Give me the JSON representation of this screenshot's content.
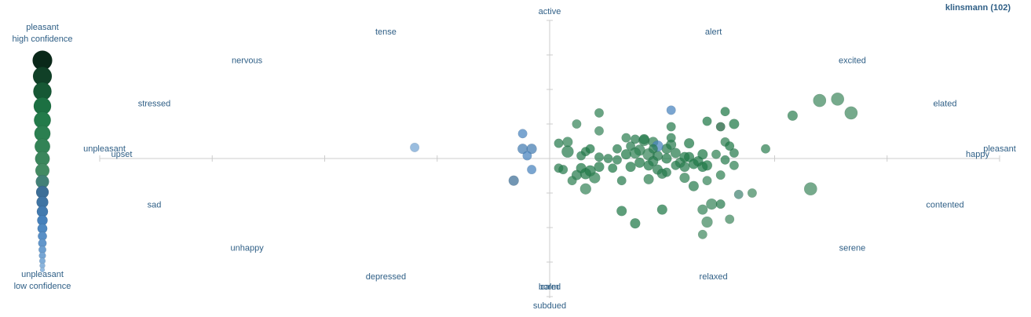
{
  "chart_data": {
    "type": "scatter",
    "title": "klinsmann (102)",
    "xlabel": "",
    "ylabel": "",
    "xlim": [
      -1,
      1
    ],
    "ylim": [
      -1,
      1
    ],
    "grid": false,
    "axis_labels": {
      "x_neg": "unpleasant",
      "x_pos": "pleasant",
      "y_pos": "active",
      "y_neg": "subdued"
    },
    "emotion_labels": [
      {
        "text": "tense",
        "angle": 112.5
      },
      {
        "text": "nervous",
        "angle": 135
      },
      {
        "text": "stressed",
        "angle": 157.5
      },
      {
        "text": "upset",
        "angle": 180
      },
      {
        "text": "alert",
        "angle": 67.5
      },
      {
        "text": "excited",
        "angle": 45
      },
      {
        "text": "elated",
        "angle": 22.5
      },
      {
        "text": "happy",
        "angle": 0
      },
      {
        "text": "sad",
        "angle": 202.5
      },
      {
        "text": "unhappy",
        "angle": 225
      },
      {
        "text": "depressed",
        "angle": 247.5
      },
      {
        "text": "bored",
        "angle": 270
      },
      {
        "text": "contented",
        "angle": -22.5
      },
      {
        "text": "serene",
        "angle": -45
      },
      {
        "text": "relaxed",
        "angle": -67.5
      },
      {
        "text": "calm",
        "angle": -90
      }
    ],
    "legend": {
      "top_line1": "pleasant",
      "top_line2": "high confidence",
      "bottom_line1": "unpleasant",
      "bottom_line2": "low confidence",
      "placement": "left"
    },
    "points": [
      {
        "x": -0.3,
        "y": 0.08,
        "c": 0.2,
        "s": 0.3
      },
      {
        "x": -0.06,
        "y": 0.18,
        "c": 0.4,
        "s": 0.3
      },
      {
        "x": -0.06,
        "y": 0.07,
        "c": 0.45,
        "s": 0.4
      },
      {
        "x": -0.04,
        "y": 0.07,
        "c": 0.45,
        "s": 0.4
      },
      {
        "x": -0.05,
        "y": 0.02,
        "c": 0.4,
        "s": 0.3
      },
      {
        "x": -0.04,
        "y": -0.08,
        "c": 0.4,
        "s": 0.3
      },
      {
        "x": -0.08,
        "y": -0.16,
        "c": 0.55,
        "s": 0.4
      },
      {
        "x": 0.11,
        "y": 0.33,
        "c": 0.75,
        "s": 0.3
      },
      {
        "x": 0.11,
        "y": 0.2,
        "c": 0.7,
        "s": 0.3
      },
      {
        "x": 0.04,
        "y": 0.12,
        "c": 0.75,
        "s": 0.4
      },
      {
        "x": 0.02,
        "y": 0.11,
        "c": 0.8,
        "s": 0.3
      },
      {
        "x": 0.04,
        "y": 0.05,
        "c": 0.8,
        "s": 0.6
      },
      {
        "x": 0.08,
        "y": 0.05,
        "c": 0.85,
        "s": 0.3
      },
      {
        "x": 0.09,
        "y": 0.07,
        "c": 0.85,
        "s": 0.3
      },
      {
        "x": 0.07,
        "y": 0.02,
        "c": 0.8,
        "s": 0.3
      },
      {
        "x": 0.02,
        "y": -0.07,
        "c": 0.8,
        "s": 0.3
      },
      {
        "x": 0.07,
        "y": -0.07,
        "c": 0.85,
        "s": 0.4
      },
      {
        "x": 0.09,
        "y": -0.09,
        "c": 0.85,
        "s": 0.5
      },
      {
        "x": 0.08,
        "y": -0.11,
        "c": 0.85,
        "s": 0.5
      },
      {
        "x": 0.06,
        "y": -0.12,
        "c": 0.8,
        "s": 0.4
      },
      {
        "x": 0.11,
        "y": -0.06,
        "c": 0.85,
        "s": 0.4
      },
      {
        "x": 0.1,
        "y": -0.14,
        "c": 0.75,
        "s": 0.5
      },
      {
        "x": 0.11,
        "y": 0.01,
        "c": 0.8,
        "s": 0.3
      },
      {
        "x": 0.15,
        "y": 0.07,
        "c": 0.8,
        "s": 0.3
      },
      {
        "x": 0.15,
        "y": -0.01,
        "c": 0.8,
        "s": 0.3
      },
      {
        "x": 0.17,
        "y": 0.03,
        "c": 0.85,
        "s": 0.4
      },
      {
        "x": 0.18,
        "y": 0.09,
        "c": 0.8,
        "s": 0.3
      },
      {
        "x": 0.19,
        "y": 0.14,
        "c": 0.8,
        "s": 0.3
      },
      {
        "x": 0.2,
        "y": 0.06,
        "c": 0.75,
        "s": 0.5
      },
      {
        "x": 0.21,
        "y": 0.13,
        "c": 0.75,
        "s": 0.5
      },
      {
        "x": 0.22,
        "y": 0.03,
        "c": 0.7,
        "s": 0.6
      },
      {
        "x": 0.23,
        "y": 0.12,
        "c": 0.75,
        "s": 0.4
      },
      {
        "x": 0.24,
        "y": 0.02,
        "c": 0.8,
        "s": 0.4
      },
      {
        "x": 0.2,
        "y": -0.03,
        "c": 0.85,
        "s": 0.4
      },
      {
        "x": 0.18,
        "y": -0.06,
        "c": 0.85,
        "s": 0.4
      },
      {
        "x": 0.22,
        "y": -0.05,
        "c": 0.85,
        "s": 0.4
      },
      {
        "x": 0.23,
        "y": -0.02,
        "c": 0.8,
        "s": 0.4
      },
      {
        "x": 0.24,
        "y": -0.08,
        "c": 0.8,
        "s": 0.4
      },
      {
        "x": 0.25,
        "y": -0.11,
        "c": 0.8,
        "s": 0.4
      },
      {
        "x": 0.22,
        "y": -0.15,
        "c": 0.75,
        "s": 0.4
      },
      {
        "x": 0.26,
        "y": 0.07,
        "c": 0.8,
        "s": 0.4
      },
      {
        "x": 0.26,
        "y": 0.0,
        "c": 0.85,
        "s": 0.4
      },
      {
        "x": 0.24,
        "y": 0.09,
        "c": 0.4,
        "s": 0.5
      },
      {
        "x": 0.27,
        "y": 0.1,
        "c": 0.8,
        "s": 0.4
      },
      {
        "x": 0.28,
        "y": 0.04,
        "c": 0.8,
        "s": 0.4
      },
      {
        "x": 0.29,
        "y": -0.03,
        "c": 0.75,
        "s": 0.4
      },
      {
        "x": 0.27,
        "y": 0.23,
        "c": 0.8,
        "s": 0.3
      },
      {
        "x": 0.27,
        "y": 0.15,
        "c": 0.8,
        "s": 0.3
      },
      {
        "x": 0.27,
        "y": 0.35,
        "c": 0.4,
        "s": 0.3
      },
      {
        "x": 0.3,
        "y": -0.06,
        "c": 0.8,
        "s": 0.4
      },
      {
        "x": 0.3,
        "y": 0.01,
        "c": 0.85,
        "s": 0.4
      },
      {
        "x": 0.3,
        "y": -0.14,
        "c": 0.75,
        "s": 0.4
      },
      {
        "x": 0.31,
        "y": 0.11,
        "c": 0.85,
        "s": 0.4
      },
      {
        "x": 0.31,
        "y": 0.01,
        "c": 0.85,
        "s": 0.4
      },
      {
        "x": 0.32,
        "y": -0.04,
        "c": 0.85,
        "s": 0.4
      },
      {
        "x": 0.32,
        "y": -0.2,
        "c": 0.8,
        "s": 0.4
      },
      {
        "x": 0.33,
        "y": -0.02,
        "c": 0.85,
        "s": 0.4
      },
      {
        "x": 0.34,
        "y": 0.03,
        "c": 0.85,
        "s": 0.4
      },
      {
        "x": 0.34,
        "y": -0.06,
        "c": 0.85,
        "s": 0.4
      },
      {
        "x": 0.35,
        "y": 0.27,
        "c": 0.85,
        "s": 0.3
      },
      {
        "x": 0.35,
        "y": -0.05,
        "c": 0.85,
        "s": 0.4
      },
      {
        "x": 0.34,
        "y": -0.37,
        "c": 0.7,
        "s": 0.4
      },
      {
        "x": 0.35,
        "y": -0.46,
        "c": 0.65,
        "s": 0.5
      },
      {
        "x": 0.34,
        "y": -0.55,
        "c": 0.65,
        "s": 0.3
      },
      {
        "x": 0.36,
        "y": -0.33,
        "c": 0.7,
        "s": 0.5
      },
      {
        "x": 0.35,
        "y": -0.16,
        "c": 0.7,
        "s": 0.3
      },
      {
        "x": 0.37,
        "y": 0.03,
        "c": 0.75,
        "s": 0.3
      },
      {
        "x": 0.38,
        "y": -0.12,
        "c": 0.75,
        "s": 0.3
      },
      {
        "x": 0.38,
        "y": -0.33,
        "c": 0.8,
        "s": 0.3
      },
      {
        "x": 0.38,
        "y": 0.23,
        "c": 0.9,
        "s": 0.3
      },
      {
        "x": 0.39,
        "y": 0.34,
        "c": 0.85,
        "s": 0.3
      },
      {
        "x": 0.39,
        "y": 0.12,
        "c": 0.75,
        "s": 0.3
      },
      {
        "x": 0.4,
        "y": 0.09,
        "c": 0.85,
        "s": 0.3
      },
      {
        "x": 0.39,
        "y": -0.01,
        "c": 0.8,
        "s": 0.3
      },
      {
        "x": 0.4,
        "y": -0.44,
        "c": 0.65,
        "s": 0.3
      },
      {
        "x": 0.41,
        "y": 0.25,
        "c": 0.85,
        "s": 0.4
      },
      {
        "x": 0.41,
        "y": -0.05,
        "c": 0.75,
        "s": 0.3
      },
      {
        "x": 0.41,
        "y": 0.04,
        "c": 0.8,
        "s": 0.3
      },
      {
        "x": 0.42,
        "y": -0.26,
        "c": 0.6,
        "s": 0.3
      },
      {
        "x": 0.45,
        "y": -0.25,
        "c": 0.65,
        "s": 0.3
      },
      {
        "x": 0.48,
        "y": 0.07,
        "c": 0.75,
        "s": 0.3
      },
      {
        "x": 0.54,
        "y": 0.31,
        "c": 0.75,
        "s": 0.4
      },
      {
        "x": 0.6,
        "y": 0.42,
        "c": 0.65,
        "s": 0.7
      },
      {
        "x": 0.64,
        "y": 0.43,
        "c": 0.65,
        "s": 0.7
      },
      {
        "x": 0.67,
        "y": 0.33,
        "c": 0.65,
        "s": 0.7
      },
      {
        "x": 0.58,
        "y": -0.22,
        "c": 0.65,
        "s": 0.7
      },
      {
        "x": 0.16,
        "y": -0.38,
        "c": 0.85,
        "s": 0.4
      },
      {
        "x": 0.19,
        "y": -0.47,
        "c": 0.85,
        "s": 0.4
      },
      {
        "x": 0.25,
        "y": -0.37,
        "c": 0.85,
        "s": 0.4
      },
      {
        "x": 0.05,
        "y": -0.16,
        "c": 0.75,
        "s": 0.3
      },
      {
        "x": 0.08,
        "y": -0.22,
        "c": 0.7,
        "s": 0.5
      },
      {
        "x": 0.03,
        "y": -0.08,
        "c": 0.8,
        "s": 0.3
      },
      {
        "x": 0.06,
        "y": 0.25,
        "c": 0.7,
        "s": 0.3
      },
      {
        "x": 0.13,
        "y": 0.0,
        "c": 0.8,
        "s": 0.3
      },
      {
        "x": 0.14,
        "y": -0.07,
        "c": 0.85,
        "s": 0.3
      },
      {
        "x": 0.17,
        "y": 0.15,
        "c": 0.75,
        "s": 0.3
      },
      {
        "x": 0.21,
        "y": 0.14,
        "c": 0.8,
        "s": 0.4
      },
      {
        "x": 0.19,
        "y": 0.04,
        "c": 0.75,
        "s": 0.5
      },
      {
        "x": 0.23,
        "y": 0.07,
        "c": 0.8,
        "s": 0.3
      },
      {
        "x": 0.16,
        "y": -0.16,
        "c": 0.8,
        "s": 0.3
      },
      {
        "x": 0.26,
        "y": -0.1,
        "c": 0.8,
        "s": 0.3
      },
      {
        "x": 0.28,
        "y": -0.05,
        "c": 0.8,
        "s": 0.3
      }
    ]
  }
}
